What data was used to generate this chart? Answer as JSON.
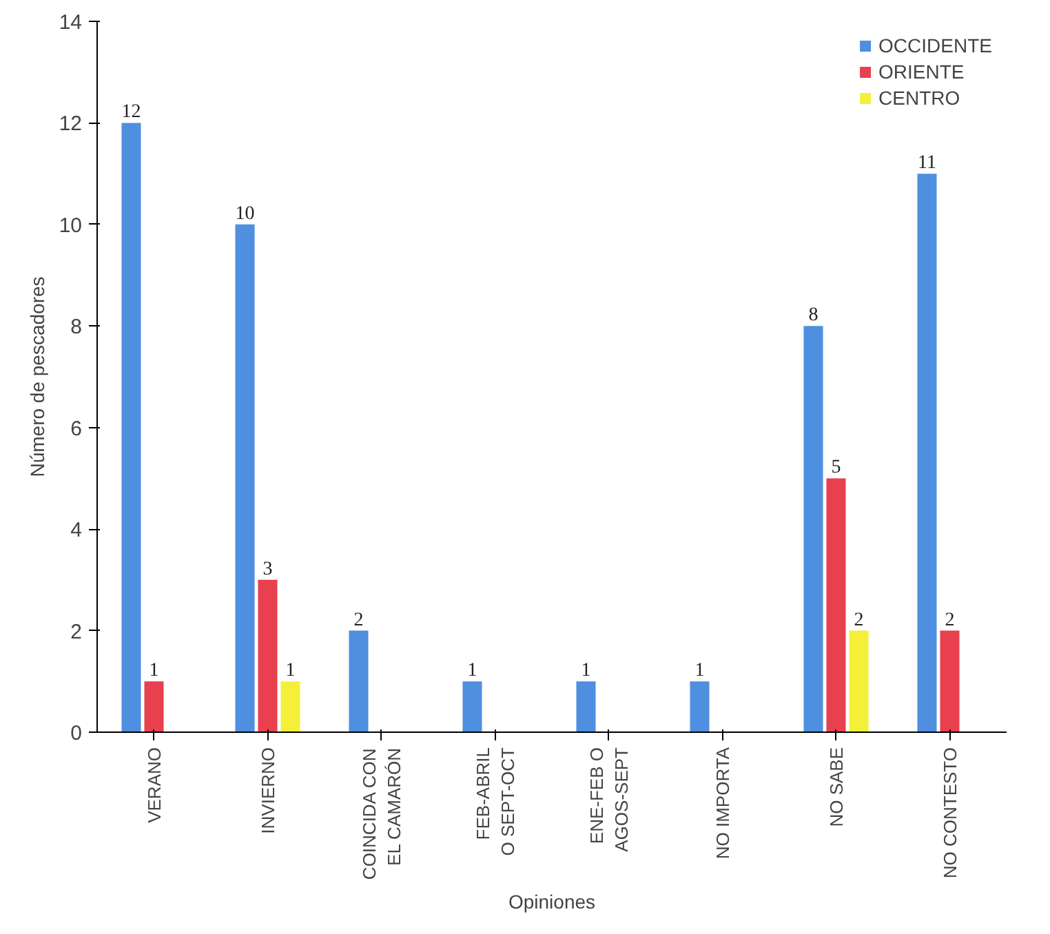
{
  "chart_data": {
    "type": "bar",
    "xlabel": "Opiniones",
    "ylabel": "Número de pescadores",
    "categories": [
      "VERANO",
      "INVIERNO",
      "COINCIDA CON EL CAMARÓN",
      "FEB-ABRIL O SEPT-OCT",
      "ENE-FEB O AGOS-SEPT",
      "NO IMPORTA",
      "NO SABE",
      "NO CONTESTO"
    ],
    "series": [
      {
        "name": "OCCIDENTE",
        "color": "#4f8fe0",
        "values": [
          12,
          10,
          2,
          1,
          1,
          1,
          8,
          11
        ],
        "value_labels": [
          "12",
          "10",
          "2",
          "1",
          "1",
          "1",
          "8",
          "11"
        ]
      },
      {
        "name": "ORIENTE",
        "color": "#e8404f",
        "values": [
          1,
          3,
          0,
          0,
          0,
          0,
          5,
          2
        ],
        "value_labels": [
          "1",
          "3",
          null,
          null,
          null,
          null,
          "5",
          "2"
        ]
      },
      {
        "name": "CENTRO",
        "color": "#f4f03a",
        "values": [
          0,
          1,
          0,
          0,
          0,
          0,
          2,
          0
        ],
        "value_labels": [
          null,
          "1",
          null,
          null,
          null,
          null,
          "2",
          null
        ]
      }
    ],
    "ylim": [
      0,
      14
    ],
    "yticks": [
      0,
      2,
      4,
      6,
      8,
      10,
      12,
      14
    ],
    "grid": false,
    "legend": "top right"
  }
}
